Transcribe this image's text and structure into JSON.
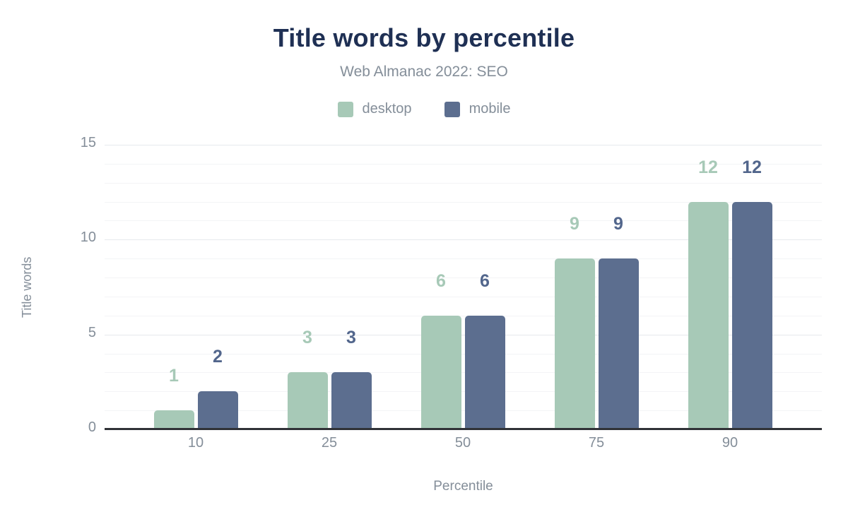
{
  "title": "Title words by percentile",
  "subtitle": "Web Almanac 2022: SEO",
  "legend": {
    "items": [
      {
        "label": "desktop"
      },
      {
        "label": "mobile"
      }
    ]
  },
  "chart_data": {
    "type": "bar",
    "categories": [
      "10",
      "25",
      "50",
      "75",
      "90"
    ],
    "series": [
      {
        "name": "desktop",
        "values": [
          1,
          3,
          6,
          9,
          12
        ],
        "color": "#a7c9b7",
        "label_color": "#a7c9b7"
      },
      {
        "name": "mobile",
        "values": [
          2,
          3,
          6,
          9,
          12
        ],
        "color": "#5c6e8f",
        "label_color": "#52668c"
      }
    ],
    "title": "Title words by percentile",
    "subtitle": "Web Almanac 2022: SEO",
    "xlabel": "Percentile",
    "ylabel": "Title words",
    "ylim": [
      0,
      15
    ],
    "yticks": [
      0,
      5,
      10,
      15
    ],
    "grid": true,
    "grid_interval_minor": 1,
    "grid_interval_major": 5,
    "legend_position": "top",
    "value_labels": true
  },
  "colors": {
    "title_text": "#1f3054",
    "muted_text": "#848e99",
    "axis_line": "#303237",
    "grid_minor": "#f3f4f6",
    "grid_major": "#e6e9ed",
    "background": "#ffffff",
    "desktop": "#a7c9b7",
    "mobile": "#5c6e8f"
  }
}
